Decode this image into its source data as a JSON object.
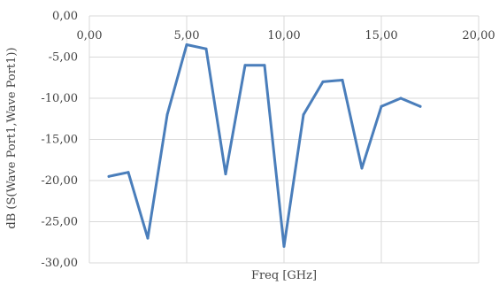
{
  "chart_data": {
    "type": "line",
    "title": "",
    "xlabel": "Freq [GHz]",
    "ylabel": "dB (S(Wave Port1,Wave Port1))",
    "xlim": [
      0,
      20
    ],
    "ylim": [
      -30,
      0
    ],
    "x_ticks": [
      "0,00",
      "5,00",
      "10,00",
      "15,00",
      "20,00"
    ],
    "y_ticks": [
      "0,00",
      "-5,00",
      "-10,00",
      "-15,00",
      "-20,00",
      "-25,00",
      "-30,00"
    ],
    "x_tick_values": [
      0,
      5,
      10,
      15,
      20
    ],
    "y_tick_values": [
      0,
      -5,
      -10,
      -15,
      -20,
      -25,
      -30
    ],
    "grid": true,
    "legend": "none",
    "series": [
      {
        "color": "#4a7ebb",
        "x": [
          1,
          2,
          3,
          4,
          5,
          6,
          7,
          8,
          9,
          10,
          11,
          12,
          13,
          14,
          15,
          16,
          17
        ],
        "y": [
          -19.5,
          -19.0,
          -27.0,
          -12.0,
          -3.5,
          -4.0,
          -19.2,
          -6.0,
          -6.0,
          -28.0,
          -12.0,
          -8.0,
          -7.8,
          -18.5,
          -11.0,
          -10.0,
          -11.0
        ]
      }
    ]
  }
}
